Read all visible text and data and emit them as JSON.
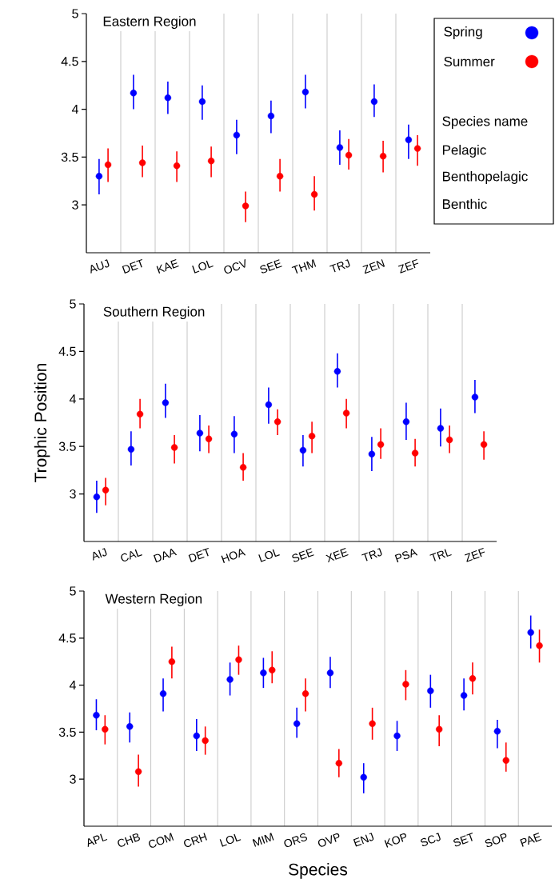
{
  "chart_data": [
    {
      "type": "scatter",
      "title": "Eastern Region",
      "categories": [
        "AUJ",
        "DET",
        "KAE",
        "LOL",
        "OCV",
        "SEE",
        "THM",
        "TRJ",
        "ZEN",
        "ZEF"
      ],
      "series": [
        {
          "name": "Spring",
          "color": "#0000ff",
          "values": [
            3.3,
            4.17,
            4.12,
            4.08,
            3.73,
            3.93,
            4.18,
            3.6,
            4.08,
            3.68
          ],
          "errors": [
            [
              3.11,
              3.48
            ],
            [
              4.0,
              4.36
            ],
            [
              3.95,
              4.29
            ],
            [
              3.89,
              4.25
            ],
            [
              3.53,
              3.89
            ],
            [
              3.75,
              4.09
            ],
            [
              4.01,
              4.36
            ],
            [
              3.42,
              3.78
            ],
            [
              3.92,
              4.26
            ],
            [
              3.48,
              3.84
            ]
          ]
        },
        {
          "name": "Summer",
          "color": "#ff0000",
          "values": [
            3.42,
            3.44,
            3.41,
            3.46,
            2.99,
            3.3,
            3.11,
            3.52,
            3.51,
            3.59
          ],
          "errors": [
            [
              3.24,
              3.59
            ],
            [
              3.29,
              3.62
            ],
            [
              3.24,
              3.56
            ],
            [
              3.29,
              3.61
            ],
            [
              2.82,
              3.14
            ],
            [
              3.14,
              3.48
            ],
            [
              2.94,
              3.3
            ],
            [
              3.37,
              3.69
            ],
            [
              3.34,
              3.67
            ],
            [
              3.41,
              3.73
            ]
          ]
        }
      ],
      "ylim": [
        2.5,
        5
      ],
      "yticks": [
        3,
        3.5,
        4,
        4.5,
        5
      ],
      "grid": "x",
      "marker": "circle",
      "legend": "right",
      "legend_title": "Species name",
      "annotations": [
        "Pelagic",
        "Benthopelagic",
        "Benthic"
      ]
    },
    {
      "type": "scatter",
      "title": "Southern Region",
      "ylabel": "Trophic Position",
      "categories": [
        "AIJ",
        "CAL",
        "DAA",
        "DET",
        "HOA",
        "LOL",
        "SEE",
        "XEE",
        "TRJ",
        "PSA",
        "TRL",
        "ZEF"
      ],
      "series": [
        {
          "color": "#0000ff",
          "values": [
            2.97,
            3.47,
            3.96,
            3.64,
            3.63,
            3.94,
            3.46,
            4.29,
            3.42,
            3.76,
            3.69,
            4.02
          ],
          "errors": [
            [
              2.8,
              3.14
            ],
            [
              3.3,
              3.66
            ],
            [
              3.8,
              4.16
            ],
            [
              3.45,
              3.83
            ],
            [
              3.43,
              3.82
            ],
            [
              3.74,
              4.12
            ],
            [
              3.29,
              3.62
            ],
            [
              4.12,
              4.48
            ],
            [
              3.24,
              3.6
            ],
            [
              3.57,
              3.96
            ],
            [
              3.5,
              3.9
            ],
            [
              3.85,
              4.2
            ]
          ]
        },
        {
          "color": "#ff0000",
          "values": [
            3.04,
            3.84,
            3.49,
            3.58,
            3.28,
            3.76,
            3.61,
            3.85,
            3.52,
            3.43,
            3.57,
            3.52
          ],
          "errors": [
            [
              2.88,
              3.17
            ],
            [
              3.69,
              4.0
            ],
            [
              3.32,
              3.62
            ],
            [
              3.43,
              3.72
            ],
            [
              3.14,
              3.43
            ],
            [
              3.62,
              3.89
            ],
            [
              3.43,
              3.76
            ],
            [
              3.69,
              4.0
            ],
            [
              3.37,
              3.69
            ],
            [
              3.29,
              3.58
            ],
            [
              3.43,
              3.72
            ],
            [
              3.36,
              3.66
            ]
          ]
        }
      ],
      "ylim": [
        2.5,
        5
      ],
      "yticks": [
        3,
        3.5,
        4,
        4.5,
        5
      ],
      "grid": "x",
      "marker": "circle"
    },
    {
      "type": "scatter",
      "title": "Western Region",
      "xlabel": "Species",
      "categories": [
        "APL",
        "CHB",
        "COM",
        "CRH",
        "LOL",
        "MIM",
        "ORS",
        "OVP",
        "ENJ",
        "KOP",
        "SCJ",
        "SET",
        "SOP",
        "PAE"
      ],
      "series": [
        {
          "color": "#0000ff",
          "values": [
            3.68,
            3.56,
            3.91,
            3.46,
            4.06,
            4.13,
            3.59,
            4.13,
            3.02,
            3.46,
            3.94,
            3.89,
            3.51,
            4.56
          ],
          "errors": [
            [
              3.52,
              3.85
            ],
            [
              3.39,
              3.71
            ],
            [
              3.72,
              4.07
            ],
            [
              3.3,
              3.64
            ],
            [
              3.89,
              4.24
            ],
            [
              3.97,
              4.29
            ],
            [
              3.44,
              3.76
            ],
            [
              3.97,
              4.3
            ],
            [
              2.85,
              3.17
            ],
            [
              3.3,
              3.62
            ],
            [
              3.76,
              4.11
            ],
            [
              3.73,
              4.07
            ],
            [
              3.33,
              3.63
            ],
            [
              4.39,
              4.74
            ]
          ]
        },
        {
          "color": "#ff0000",
          "values": [
            3.53,
            3.08,
            4.25,
            3.41,
            4.27,
            4.16,
            3.91,
            3.17,
            3.59,
            4.01,
            3.53,
            4.07,
            3.2,
            4.42
          ],
          "errors": [
            [
              3.37,
              3.68
            ],
            [
              2.92,
              3.26
            ],
            [
              4.07,
              4.41
            ],
            [
              3.26,
              3.56
            ],
            [
              4.11,
              4.42
            ],
            [
              4.02,
              4.36
            ],
            [
              3.72,
              4.07
            ],
            [
              3.02,
              3.32
            ],
            [
              3.42,
              3.76
            ],
            [
              3.84,
              4.16
            ],
            [
              3.35,
              3.68
            ],
            [
              3.9,
              4.24
            ],
            [
              3.08,
              3.39
            ],
            [
              4.24,
              4.59
            ]
          ]
        }
      ],
      "ylim": [
        2.5,
        5
      ],
      "yticks": [
        3,
        3.5,
        4,
        4.5,
        5
      ],
      "grid": "x",
      "marker": "circle"
    }
  ]
}
